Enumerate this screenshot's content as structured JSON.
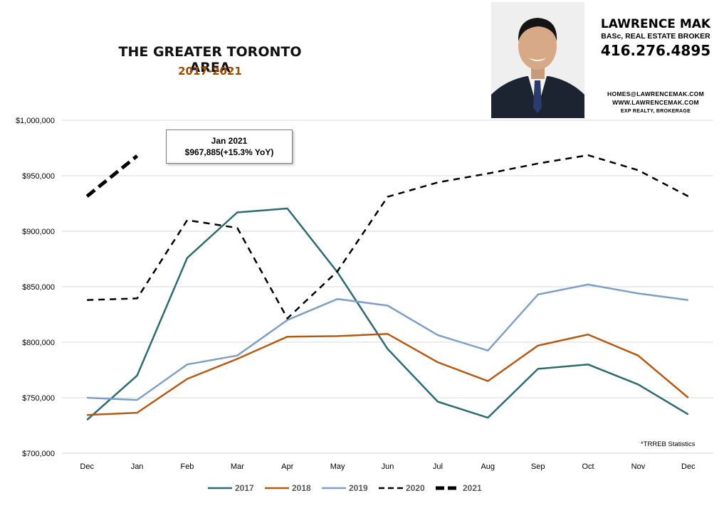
{
  "header": {
    "title": "THE GREATER TORONTO AREA",
    "subtitle": "2017-2021"
  },
  "branding": {
    "name": "LAWRENCE MAK",
    "title": "BASc, REAL ESTATE BROKER",
    "phone": "416.276.4895",
    "email": "HOMES@LAWRENCEMAK.COM",
    "website": "WWW.LAWRENCEMAK.COM",
    "company": "EXP REALTY, BROKERAGE"
  },
  "annotation": {
    "line1": "Jan 2021",
    "line2": "$967,885(+15.3%  YoY)"
  },
  "source_note": "*TRREB Statistics",
  "colors": {
    "subtitle": "#9b4a00",
    "grid": "#d9d9d9",
    "2017": "#2e6b71",
    "2018": "#b55a14",
    "2019": "#7f9fc4",
    "2020": "#000000",
    "2021": "#000000"
  },
  "chart_data": {
    "type": "line",
    "categories": [
      "Dec",
      "Jan",
      "Feb",
      "Mar",
      "Apr",
      "May",
      "Jun",
      "Jul",
      "Aug",
      "Sep",
      "Oct",
      "Nov",
      "Dec"
    ],
    "ylim": [
      700000,
      1000000
    ],
    "y_ticks": [
      "$700,000",
      "$750,000",
      "$800,000",
      "$850,000",
      "$900,000",
      "$950,000",
      "$1,000,000"
    ],
    "y_tick_values": [
      700000,
      750000,
      800000,
      850000,
      900000,
      950000,
      1000000
    ],
    "grid": true,
    "legend_position": "bottom",
    "series": [
      {
        "name": "2017",
        "style": "solid",
        "values": [
          730000,
          770000,
          876000,
          917000,
          920500,
          863000,
          794000,
          746500,
          732000,
          776000,
          780000,
          762000,
          735000
        ]
      },
      {
        "name": "2018",
        "style": "solid",
        "values": [
          734500,
          736500,
          767000,
          785000,
          805000,
          805500,
          807500,
          782000,
          765000,
          797000,
          807000,
          788000,
          750000
        ]
      },
      {
        "name": "2019",
        "style": "solid",
        "values": [
          750000,
          748000,
          780000,
          788000,
          820000,
          839000,
          833000,
          806500,
          792500,
          843000,
          852000,
          844000,
          838000
        ]
      },
      {
        "name": "2020",
        "style": "dashed",
        "values": [
          838000,
          839500,
          910000,
          903000,
          821500,
          864000,
          931000,
          944000,
          952000,
          961000,
          968500,
          955000,
          931500
        ]
      },
      {
        "name": "2021",
        "style": "bold-dashed",
        "values": [
          931500,
          967885,
          null,
          null,
          null,
          null,
          null,
          null,
          null,
          null,
          null,
          null,
          null
        ]
      }
    ]
  }
}
